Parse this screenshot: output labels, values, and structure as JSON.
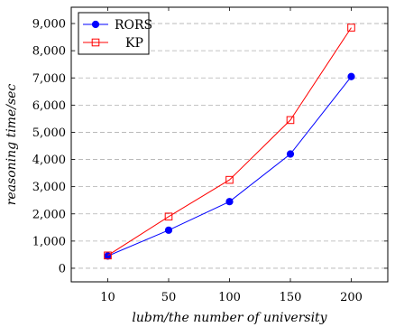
{
  "chart_data": {
    "type": "line",
    "title": "",
    "xlabel": "lubm/the number of university",
    "ylabel": "reasoning time/sec",
    "x": [
      10,
      50,
      100,
      150,
      200
    ],
    "xticks": [
      "10",
      "50",
      "100",
      "150",
      "200"
    ],
    "yticks": [
      "0",
      "1,000",
      "2,000",
      "3,000",
      "4,000",
      "5,000",
      "6,000",
      "7,000",
      "8,000",
      "9,000"
    ],
    "ylim": [
      -500,
      9600
    ],
    "grid": "horizontal-dashed",
    "legend_position": "top-left",
    "series": [
      {
        "name": "RORS",
        "color": "#0000ff",
        "marker": "filled-circle",
        "values": [
          450,
          1400,
          2450,
          4200,
          7050
        ]
      },
      {
        "name": "KP",
        "color": "#ff0000",
        "marker": "open-square",
        "values": [
          470,
          1900,
          3250,
          5450,
          8850
        ]
      }
    ]
  }
}
